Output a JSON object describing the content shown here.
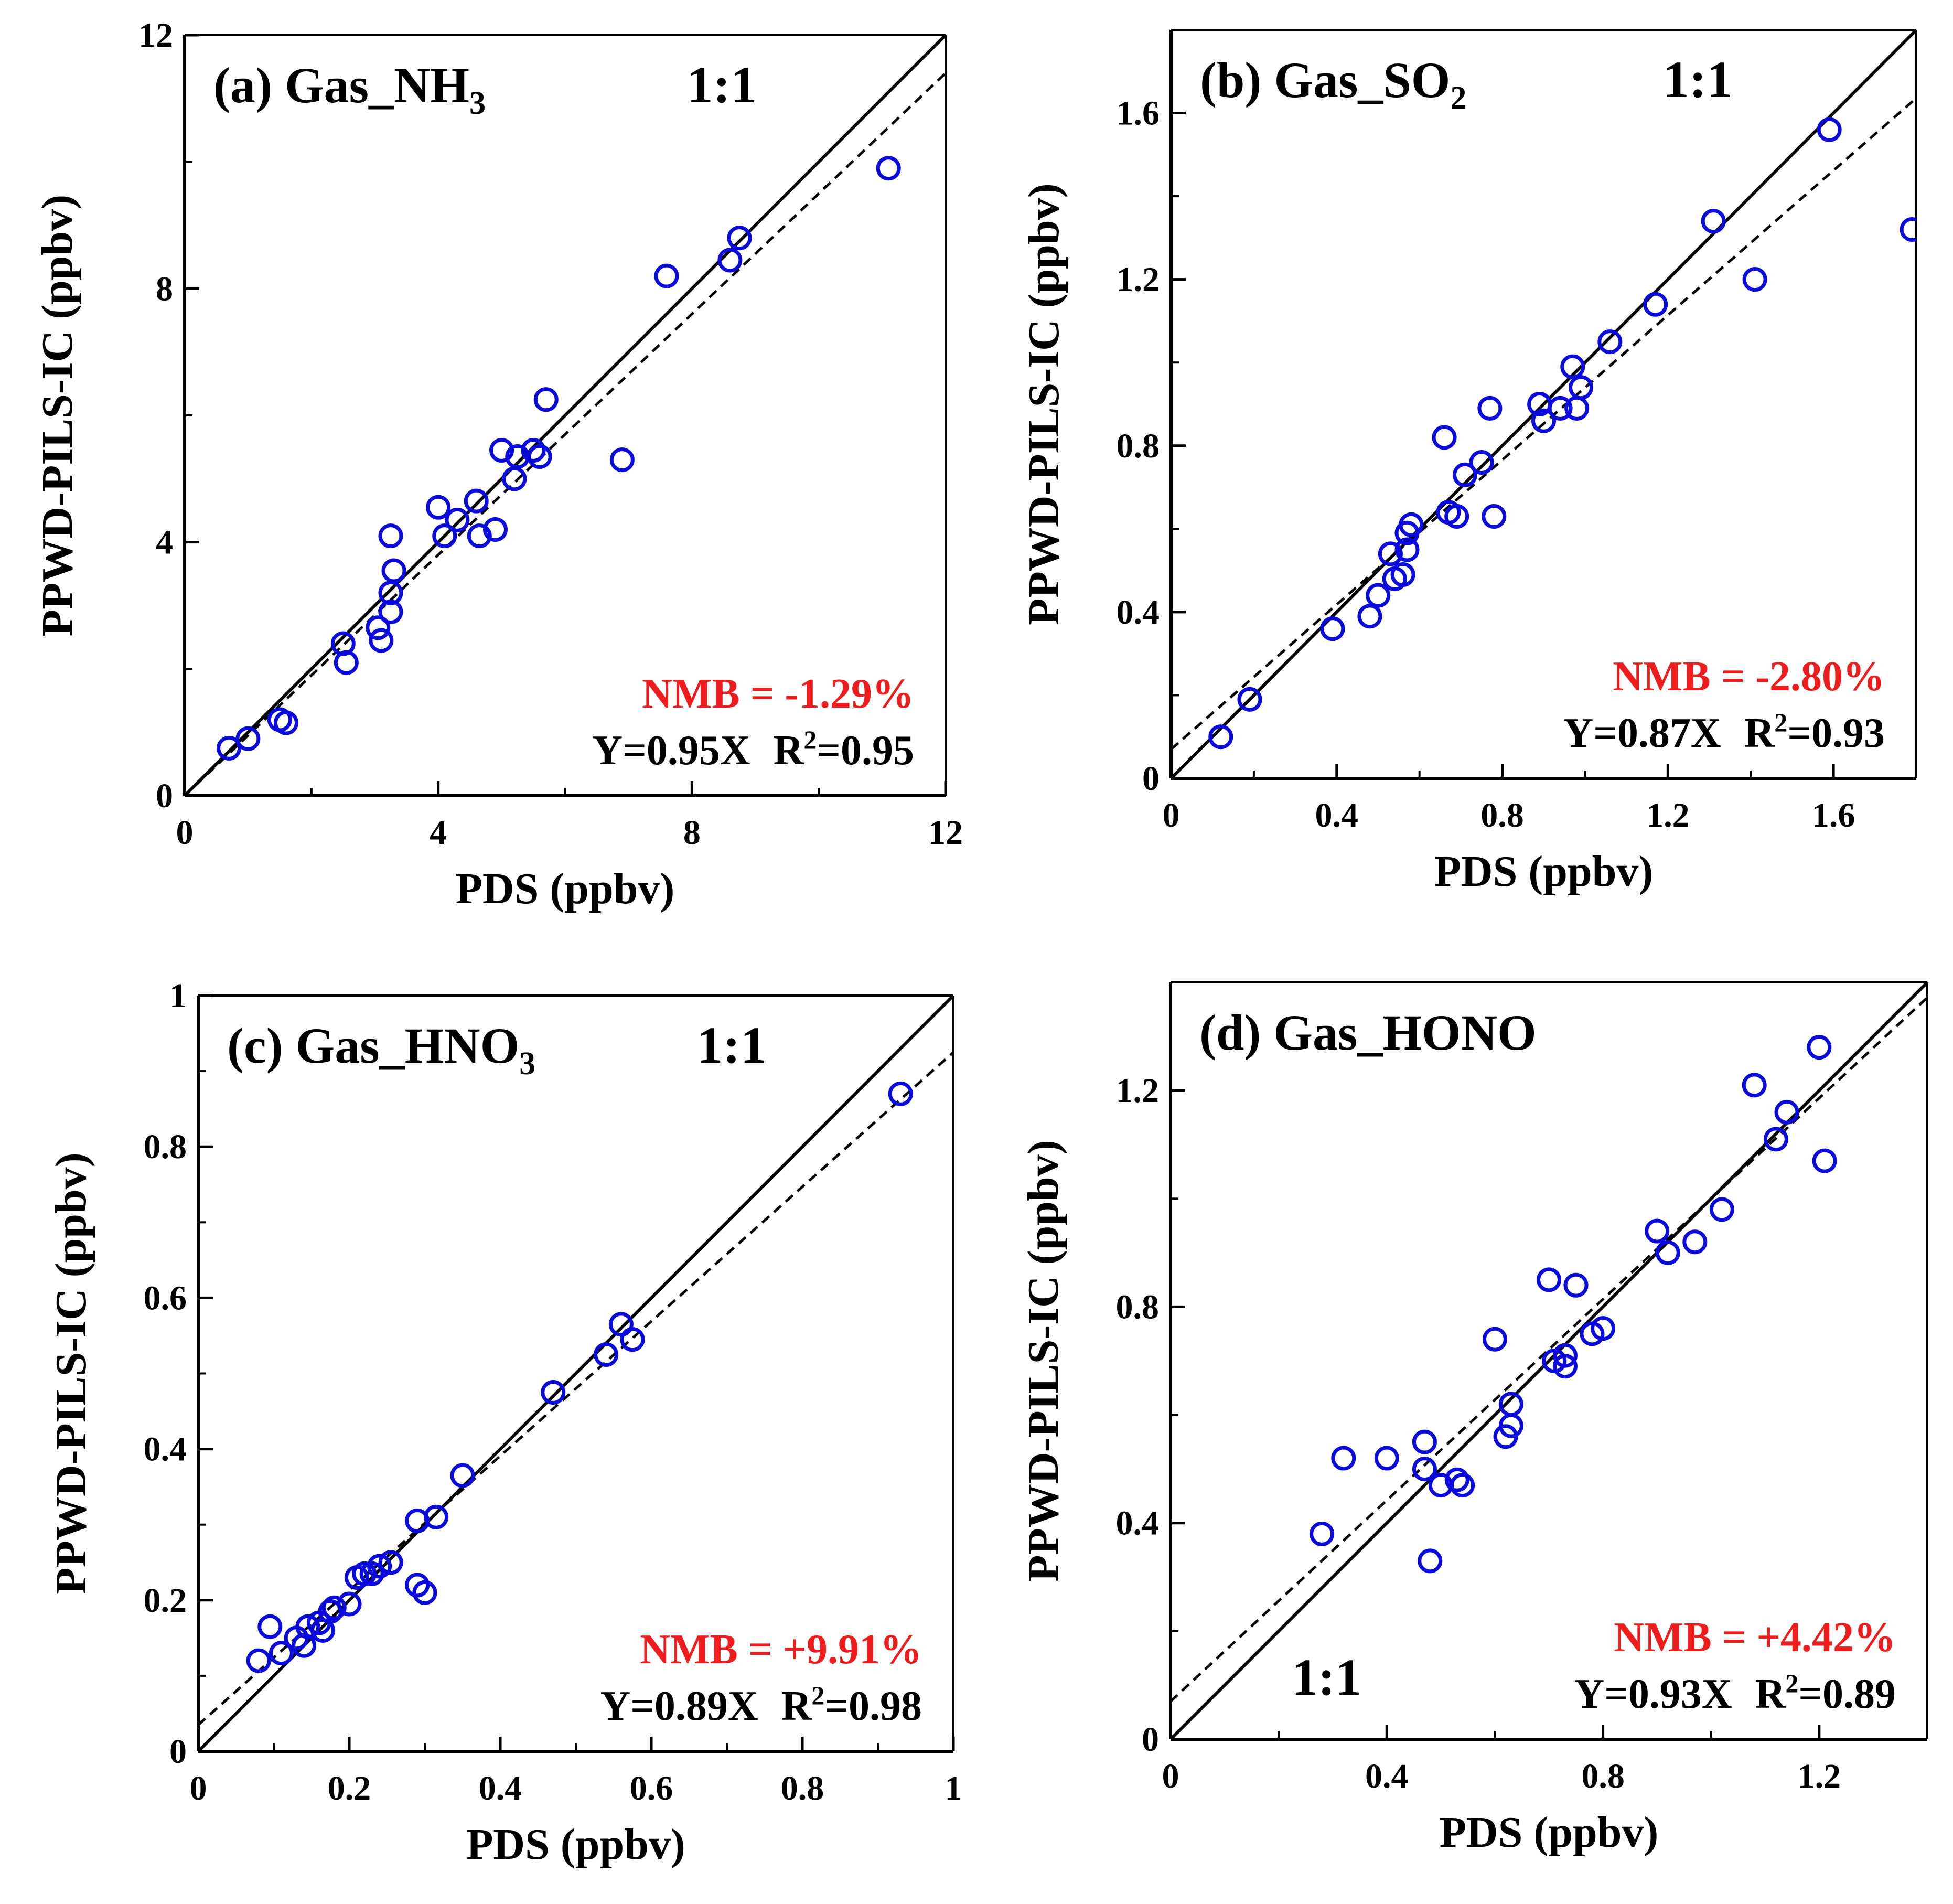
{
  "colors": {
    "marker": "#0a0adc",
    "nmb": "#ee1c1c",
    "axis": "#000000",
    "fit_line": "#000000"
  },
  "chart_data": [
    {
      "type": "scatter",
      "panel": "a",
      "title_main": "(a) Gas_NH",
      "title_sub": "3",
      "xlabel": "PDS (ppbv)",
      "ylabel": "PPWD-PILS-IC (ppbv)",
      "xlim": [
        0,
        12
      ],
      "ylim": [
        0,
        12
      ],
      "xticks": [
        0,
        4,
        8,
        12
      ],
      "yticks": [
        0,
        4,
        8,
        12
      ],
      "xtick_labels": [
        "0",
        "4",
        "8",
        "12"
      ],
      "ytick_labels": [
        "0",
        "4",
        "8",
        "12"
      ],
      "one_to_one_label": "1:1",
      "one_to_one_label_position": "top-right",
      "fit_slope": 0.95,
      "fit_intercept": 0.0,
      "nmb_text": "NMB = -1.29%",
      "fit_text": "Y=0.95X",
      "r2_prefix": "R",
      "r2_sup": "2",
      "r2_value": "=0.95",
      "points": [
        [
          0.7,
          0.75
        ],
        [
          1.0,
          0.9
        ],
        [
          1.5,
          1.2
        ],
        [
          1.6,
          1.15
        ],
        [
          2.5,
          2.4
        ],
        [
          2.55,
          2.1
        ],
        [
          3.05,
          2.65
        ],
        [
          3.1,
          2.45
        ],
        [
          3.25,
          2.9
        ],
        [
          3.25,
          3.2
        ],
        [
          3.3,
          3.55
        ],
        [
          3.25,
          4.1
        ],
        [
          4.0,
          4.55
        ],
        [
          4.1,
          4.1
        ],
        [
          4.3,
          4.35
        ],
        [
          4.6,
          4.65
        ],
        [
          4.65,
          4.1
        ],
        [
          4.9,
          4.2
        ],
        [
          5.0,
          5.45
        ],
        [
          5.2,
          5.0
        ],
        [
          5.25,
          5.35
        ],
        [
          5.5,
          5.45
        ],
        [
          5.6,
          5.35
        ],
        [
          5.7,
          6.25
        ],
        [
          6.9,
          5.3
        ],
        [
          7.6,
          8.2
        ],
        [
          8.6,
          8.45
        ],
        [
          8.75,
          8.8
        ],
        [
          11.1,
          9.9
        ]
      ]
    },
    {
      "type": "scatter",
      "panel": "b",
      "title_main": "(b) Gas_SO",
      "title_sub": "2",
      "xlabel": "PDS (ppbv)",
      "ylabel": "PPWD-PILS-IC (ppbv)",
      "xlim": [
        0,
        1.8
      ],
      "ylim": [
        0,
        1.8
      ],
      "xticks": [
        0,
        0.4,
        0.8,
        1.2,
        1.6
      ],
      "yticks": [
        0,
        0.4,
        0.8,
        1.2,
        1.6
      ],
      "xtick_labels": [
        "0",
        "0.4",
        "0.8",
        "1.2",
        "1.6"
      ],
      "ytick_labels": [
        "0",
        "0.4",
        "0.8",
        "1.2",
        "1.6"
      ],
      "one_to_one_label": "1:1",
      "one_to_one_label_position": "top-right",
      "fit_slope": 0.87,
      "fit_intercept": 0.07,
      "nmb_text": "NMB = -2.80%",
      "fit_text": "Y=0.87X",
      "r2_prefix": "R",
      "r2_sup": "2",
      "r2_value": "=0.93",
      "points": [
        [
          0.12,
          0.1
        ],
        [
          0.19,
          0.19
        ],
        [
          0.39,
          0.36
        ],
        [
          0.48,
          0.39
        ],
        [
          0.5,
          0.44
        ],
        [
          0.53,
          0.54
        ],
        [
          0.54,
          0.48
        ],
        [
          0.56,
          0.49
        ],
        [
          0.57,
          0.55
        ],
        [
          0.57,
          0.59
        ],
        [
          0.58,
          0.61
        ],
        [
          0.66,
          0.82
        ],
        [
          0.67,
          0.64
        ],
        [
          0.69,
          0.63
        ],
        [
          0.71,
          0.73
        ],
        [
          0.75,
          0.76
        ],
        [
          0.77,
          0.89
        ],
        [
          0.78,
          0.63
        ],
        [
          0.89,
          0.9
        ],
        [
          0.9,
          0.86
        ],
        [
          0.94,
          0.89
        ],
        [
          0.97,
          0.99
        ],
        [
          0.98,
          0.89
        ],
        [
          0.99,
          0.94
        ],
        [
          1.06,
          1.05
        ],
        [
          1.17,
          1.14
        ],
        [
          1.31,
          1.34
        ],
        [
          1.41,
          1.2
        ],
        [
          1.59,
          1.56
        ],
        [
          1.79,
          1.32
        ]
      ]
    },
    {
      "type": "scatter",
      "panel": "c",
      "title_main": "(c) Gas_HNO",
      "title_sub": "3",
      "xlabel": "PDS (ppbv)",
      "ylabel": "PPWD-PILS-IC (ppbv)",
      "xlim": [
        0,
        1
      ],
      "ylim": [
        0,
        1
      ],
      "xticks": [
        0,
        0.2,
        0.4,
        0.6,
        0.8,
        1
      ],
      "yticks": [
        0,
        0.2,
        0.4,
        0.6,
        0.8,
        1
      ],
      "xtick_labels": [
        "0",
        "0.2",
        "0.4",
        "0.6",
        "0.8",
        "1"
      ],
      "ytick_labels": [
        "0",
        "0.2",
        "0.4",
        "0.6",
        "0.8",
        "1"
      ],
      "one_to_one_label": "1:1",
      "one_to_one_label_position": "top-right",
      "fit_slope": 0.89,
      "fit_intercept": 0.035,
      "nmb_text": "NMB = +9.91%",
      "fit_text": "Y=0.89X",
      "r2_prefix": "R",
      "r2_sup": "2",
      "r2_value": "=0.98",
      "points": [
        [
          0.08,
          0.12
        ],
        [
          0.095,
          0.165
        ],
        [
          0.11,
          0.13
        ],
        [
          0.13,
          0.15
        ],
        [
          0.14,
          0.14
        ],
        [
          0.145,
          0.165
        ],
        [
          0.16,
          0.17
        ],
        [
          0.165,
          0.16
        ],
        [
          0.175,
          0.185
        ],
        [
          0.18,
          0.19
        ],
        [
          0.2,
          0.195
        ],
        [
          0.21,
          0.23
        ],
        [
          0.22,
          0.235
        ],
        [
          0.23,
          0.235
        ],
        [
          0.24,
          0.245
        ],
        [
          0.255,
          0.25
        ],
        [
          0.29,
          0.305
        ],
        [
          0.29,
          0.22
        ],
        [
          0.3,
          0.21
        ],
        [
          0.315,
          0.31
        ],
        [
          0.35,
          0.365
        ],
        [
          0.47,
          0.475
        ],
        [
          0.54,
          0.525
        ],
        [
          0.56,
          0.565
        ],
        [
          0.575,
          0.545
        ],
        [
          0.93,
          0.87
        ]
      ]
    },
    {
      "type": "scatter",
      "panel": "d",
      "title_main": "(d) Gas_HONO",
      "title_sub": "",
      "xlabel": "PDS (ppbv)",
      "ylabel": "PPWD-PILS-IC (ppbv)",
      "xlim": [
        0,
        1.4
      ],
      "ylim": [
        0,
        1.4
      ],
      "xticks": [
        0,
        0.4,
        0.8,
        1.2
      ],
      "yticks": [
        0,
        0.4,
        0.8,
        1.2
      ],
      "xtick_labels": [
        "0",
        "0.4",
        "0.8",
        "1.2"
      ],
      "ytick_labels": [
        "0",
        "0.4",
        "0.8",
        "1.2"
      ],
      "one_to_one_label": "1:1",
      "one_to_one_label_position": "bottom-left",
      "fit_slope": 0.93,
      "fit_intercept": 0.07,
      "nmb_text": "NMB = +4.42%",
      "fit_text": "Y=0.93X",
      "r2_prefix": "R",
      "r2_sup": "2",
      "r2_value": "=0.89",
      "points": [
        [
          0.28,
          0.38
        ],
        [
          0.32,
          0.52
        ],
        [
          0.4,
          0.52
        ],
        [
          0.47,
          0.55
        ],
        [
          0.47,
          0.5
        ],
        [
          0.48,
          0.33
        ],
        [
          0.5,
          0.47
        ],
        [
          0.53,
          0.48
        ],
        [
          0.54,
          0.47
        ],
        [
          0.6,
          0.74
        ],
        [
          0.62,
          0.56
        ],
        [
          0.63,
          0.62
        ],
        [
          0.63,
          0.58
        ],
        [
          0.7,
          0.85
        ],
        [
          0.71,
          0.7
        ],
        [
          0.73,
          0.71
        ],
        [
          0.73,
          0.69
        ],
        [
          0.75,
          0.84
        ],
        [
          0.78,
          0.75
        ],
        [
          0.8,
          0.76
        ],
        [
          0.9,
          0.94
        ],
        [
          0.92,
          0.9
        ],
        [
          0.97,
          0.92
        ],
        [
          1.02,
          0.98
        ],
        [
          1.08,
          1.21
        ],
        [
          1.12,
          1.11
        ],
        [
          1.14,
          1.16
        ],
        [
          1.2,
          1.28
        ],
        [
          1.21,
          1.07
        ]
      ]
    }
  ]
}
